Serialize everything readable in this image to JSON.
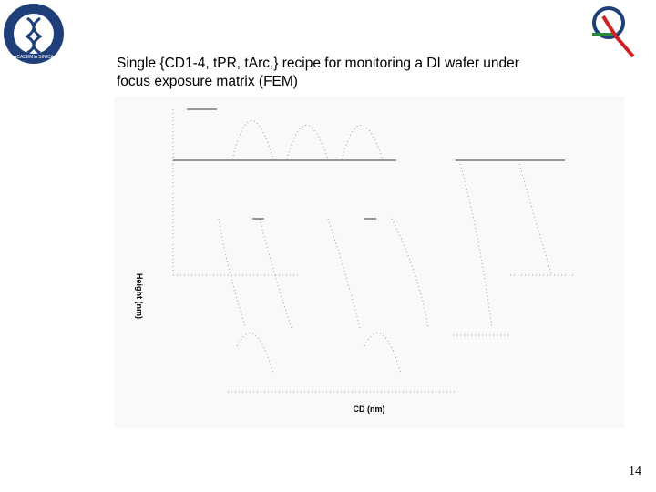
{
  "logo": {
    "text": "ACADEMIA SINICA"
  },
  "slide": {
    "title_line1": "Single  {CD1-4, tPR, tArc,} recipe for monitoring a DI wafer under",
    "title_line2": "focus exposure matrix (FEM)",
    "y_axis_label": "Height (nm)",
    "x_axis_label": "CD (nm)",
    "page_number": "14"
  }
}
